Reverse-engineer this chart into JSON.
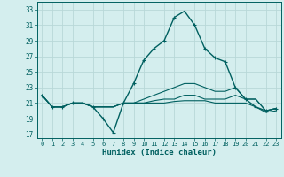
{
  "title": "",
  "xlabel": "Humidex (Indice chaleur)",
  "ylabel": "",
  "background_color": "#d4eeee",
  "grid_color": "#b8d8d8",
  "line_color": "#006060",
  "xlim": [
    -0.5,
    23.5
  ],
  "ylim": [
    16.5,
    34.0
  ],
  "xticks": [
    0,
    1,
    2,
    3,
    4,
    5,
    6,
    7,
    8,
    9,
    10,
    11,
    12,
    13,
    14,
    15,
    16,
    17,
    18,
    19,
    20,
    21,
    22,
    23
  ],
  "yticks": [
    17,
    19,
    21,
    23,
    25,
    27,
    29,
    31,
    33
  ],
  "series": [
    {
      "x": [
        0,
        1,
        2,
        3,
        4,
        5,
        6,
        7,
        8,
        9,
        10,
        11,
        12,
        13,
        14,
        15,
        16,
        17,
        18,
        19,
        20,
        21,
        22,
        23
      ],
      "y": [
        22,
        20.5,
        20.5,
        21,
        21,
        20.5,
        19,
        17.2,
        21,
        23.5,
        26.5,
        28,
        29,
        32,
        32.8,
        31,
        28,
        26.8,
        26.3,
        23,
        21.5,
        20.5,
        20,
        20.3
      ],
      "marker": "+",
      "lw": 1.0,
      "ms": 3.5
    },
    {
      "x": [
        0,
        1,
        2,
        3,
        4,
        5,
        6,
        7,
        8,
        9,
        10,
        11,
        12,
        13,
        14,
        15,
        16,
        17,
        18,
        19,
        20,
        21,
        22,
        23
      ],
      "y": [
        22,
        20.5,
        20.5,
        21,
        21,
        20.5,
        20.5,
        20.5,
        21,
        21,
        21.5,
        22,
        22.5,
        23,
        23.5,
        23.5,
        23,
        22.5,
        22.5,
        23,
        21.5,
        21.5,
        20,
        20.3
      ],
      "marker": null,
      "lw": 0.8,
      "ms": 0
    },
    {
      "x": [
        0,
        1,
        2,
        3,
        4,
        5,
        6,
        7,
        8,
        9,
        10,
        11,
        12,
        13,
        14,
        15,
        16,
        17,
        18,
        19,
        20,
        21,
        22,
        23
      ],
      "y": [
        22,
        20.5,
        20.5,
        21,
        21,
        20.5,
        20.5,
        20.5,
        21,
        21,
        21,
        21.3,
        21.5,
        21.5,
        22,
        22,
        21.5,
        21.5,
        21.5,
        22,
        21.5,
        21.5,
        20,
        20.3
      ],
      "marker": null,
      "lw": 0.8,
      "ms": 0
    },
    {
      "x": [
        0,
        1,
        2,
        3,
        4,
        5,
        6,
        7,
        8,
        9,
        10,
        11,
        12,
        13,
        14,
        15,
        16,
        17,
        18,
        19,
        20,
        21,
        22,
        23
      ],
      "y": [
        22,
        20.5,
        20.5,
        21,
        21,
        20.5,
        20.5,
        20.5,
        21,
        21,
        21,
        21,
        21,
        21.2,
        21.3,
        21.3,
        21.3,
        21,
        21,
        21,
        21,
        20.5,
        19.8,
        20
      ],
      "marker": null,
      "lw": 0.8,
      "ms": 0
    }
  ]
}
